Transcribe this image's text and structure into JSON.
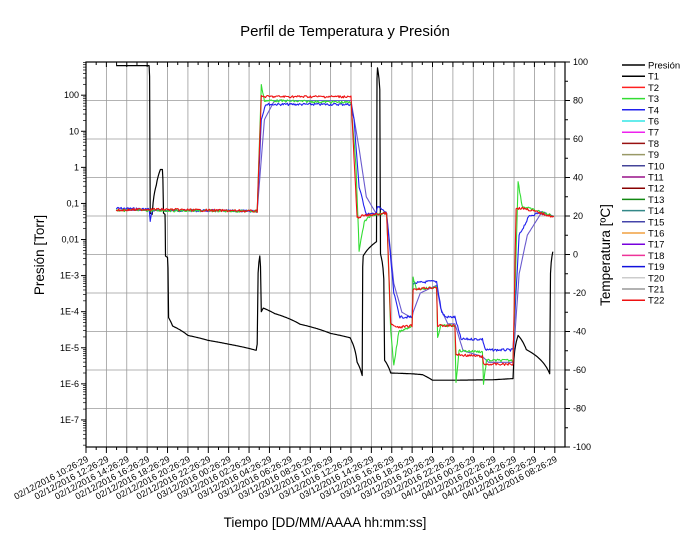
{
  "chart_data": {
    "type": "line",
    "title": "Perfil de Temperatura y Presión",
    "xlabel": "Tiempo [DD/MM/AAAA hh:mm:ss]",
    "ylabel_left": "Presión [Torr]",
    "ylabel_right": "Temperatura [ºC]",
    "x_units": "hours since 02/12/2016 10:26:29",
    "xlim": [
      0,
      47
    ],
    "x_tick_step_hours": 2,
    "x_tick_labels": [
      "02/12/2016 10:26:29",
      "02/12/2016 12:26:29",
      "02/12/2016 14:26:29",
      "02/12/2016 16:26:29",
      "02/12/2016 18:26:29",
      "02/12/2016 20:26:29",
      "02/12/2016 22:26:29",
      "03/12/2016 00:26:29",
      "03/12/2016 02:26:29",
      "03/12/2016 04:26:29",
      "03/12/2016 06:26:29",
      "03/12/2016 08:26:29",
      "03/12/2016 10:26:29",
      "03/12/2016 12:26:29",
      "03/12/2016 14:26:29",
      "03/12/2016 16:26:29",
      "03/12/2016 18:26:29",
      "03/12/2016 20:26:29",
      "03/12/2016 22:26:29",
      "04/12/2016 00:26:29",
      "04/12/2016 02:26:29",
      "04/12/2016 04:26:29",
      "04/12/2016 06:26:29",
      "04/12/2016 08:26:29"
    ],
    "y_left": {
      "scale": "log",
      "log10_range": [
        -7.75,
        2.92
      ],
      "tick_labels": [
        "100",
        "10",
        "1",
        "0,1",
        "0,01",
        "1E-3",
        "1E-4",
        "1E-5",
        "1E-6",
        "1E-7"
      ],
      "tick_values": [
        100,
        10,
        1,
        0.1,
        0.01,
        0.001,
        0.0001,
        1e-05,
        1e-06,
        1e-07
      ]
    },
    "y_right": {
      "scale": "linear",
      "ylim": [
        -100,
        100
      ],
      "tick_values": [
        100,
        80,
        60,
        40,
        20,
        0,
        -20,
        -40,
        -60,
        -80,
        -100
      ]
    },
    "grid": true,
    "legend_position": "right-outside",
    "legend": [
      {
        "name": "Presión",
        "color": "#000000"
      },
      {
        "name": "T1",
        "color": "#000000"
      },
      {
        "name": "T2",
        "color": "#ff2020"
      },
      {
        "name": "T3",
        "color": "#33dd33"
      },
      {
        "name": "T4",
        "color": "#2020ee"
      },
      {
        "name": "T6",
        "color": "#33e5e5"
      },
      {
        "name": "T7",
        "color": "#ee22ee"
      },
      {
        "name": "T8",
        "color": "#991111"
      },
      {
        "name": "T9",
        "color": "#999966"
      },
      {
        "name": "T10",
        "color": "#444499"
      },
      {
        "name": "T11",
        "color": "#991188"
      },
      {
        "name": "T12",
        "color": "#880000"
      },
      {
        "name": "T13",
        "color": "#118811"
      },
      {
        "name": "T14",
        "color": "#338888"
      },
      {
        "name": "T15",
        "color": "#4444aa"
      },
      {
        "name": "T16",
        "color": "#f0a040"
      },
      {
        "name": "T17",
        "color": "#7700dd"
      },
      {
        "name": "T18",
        "color": "#ee3399"
      },
      {
        "name": "T19",
        "color": "#1111dd"
      },
      {
        "name": "T20",
        "color": "#cccccc"
      },
      {
        "name": "T21",
        "color": "#999999"
      },
      {
        "name": "T22",
        "color": "#ee1111"
      }
    ],
    "series": [
      {
        "name": "Presión",
        "axis": "left",
        "color": "#000000",
        "points": [
          [
            2.95,
            660
          ],
          [
            6.19,
            660
          ],
          [
            6.3,
            0.054
          ],
          [
            6.5,
            0.05
          ],
          [
            6.9,
            0.32
          ],
          [
            7.3,
            0.87
          ],
          [
            7.5,
            0.87
          ],
          [
            7.6,
            0.054
          ],
          [
            7.75,
            0.05
          ],
          [
            7.8,
            0.0035
          ],
          [
            8.0,
            0.0032
          ],
          [
            8.1,
            6.8e-05
          ],
          [
            8.5,
            4e-05
          ],
          [
            10,
            2.2e-05
          ],
          [
            12,
            1.6e-05
          ],
          [
            14,
            1.26e-05
          ],
          [
            16.7,
            8.5e-06
          ],
          [
            16.8,
            1.26e-05
          ],
          [
            17.05,
            0.0035
          ],
          [
            17.2,
            0.0001
          ],
          [
            17.4,
            0.000126
          ],
          [
            18.5,
            8.9e-05
          ],
          [
            21,
            4.5e-05
          ],
          [
            24,
            2.5e-05
          ],
          [
            25.9,
            1.9e-05
          ],
          [
            26.6,
            4e-06
          ],
          [
            27.1,
            1.7e-06
          ],
          [
            27.2,
            0.0035
          ],
          [
            28.5,
            0.0087
          ],
          [
            28.6,
            575
          ],
          [
            28.9,
            0.004
          ],
          [
            29.3,
            4.5e-06
          ],
          [
            29.9,
            2e-06
          ],
          [
            32,
            1.9e-06
          ],
          [
            33,
            1.8e-06
          ],
          [
            34,
            1.26e-06
          ],
          [
            36,
            1.26e-06
          ],
          [
            40,
            1.3e-06
          ],
          [
            41.9,
            1.4e-06
          ],
          [
            42.4,
            2.2e-05
          ],
          [
            43.2,
            8.9e-06
          ],
          [
            45.5,
            1.9e-06
          ],
          [
            45.8,
            0.0046
          ]
        ]
      },
      {
        "name": "T15",
        "axis": "right",
        "color": "#6a5acd",
        "points": [
          [
            2.95,
            23
          ],
          [
            16.8,
            22.5
          ],
          [
            17.5,
            70
          ],
          [
            18.5,
            80
          ],
          [
            26,
            80
          ],
          [
            26.8,
            55
          ],
          [
            27.5,
            30
          ],
          [
            28.5,
            21
          ],
          [
            29.5,
            21.5
          ],
          [
            30.2,
            -15
          ],
          [
            31,
            -30
          ],
          [
            32,
            -33
          ],
          [
            32.1,
            -30
          ],
          [
            32.8,
            -20
          ],
          [
            34.4,
            -16
          ],
          [
            34.8,
            -28
          ],
          [
            35.5,
            -36
          ],
          [
            36.2,
            -36
          ],
          [
            37,
            -50
          ],
          [
            38.9,
            -53
          ],
          [
            39.5,
            -56
          ],
          [
            41.9,
            -56
          ],
          [
            42.5,
            -10
          ],
          [
            43.3,
            10
          ],
          [
            44.6,
            21
          ],
          [
            45.9,
            20
          ]
        ]
      },
      {
        "name": "T4",
        "axis": "right",
        "color": "#2020ee",
        "points": [
          [
            2.95,
            24
          ],
          [
            6.2,
            23.5
          ],
          [
            6.3,
            17
          ],
          [
            6.5,
            23
          ],
          [
            16.8,
            22.5
          ],
          [
            17.2,
            70
          ],
          [
            17.6,
            78
          ],
          [
            26,
            78
          ],
          [
            26.3,
            70
          ],
          [
            26.8,
            35
          ],
          [
            27.5,
            21
          ],
          [
            28.4,
            21
          ],
          [
            28.6,
            25
          ],
          [
            29.5,
            21.5
          ],
          [
            30.2,
            -20
          ],
          [
            30.8,
            -32.5
          ],
          [
            32,
            -32.5
          ],
          [
            32.1,
            -15
          ],
          [
            33.8,
            -14
          ],
          [
            34.4,
            -14
          ],
          [
            34.9,
            -30
          ],
          [
            35.3,
            -32.5
          ],
          [
            36.2,
            -32.5
          ],
          [
            36.8,
            -44
          ],
          [
            38.9,
            -44
          ],
          [
            39.2,
            -49.6
          ],
          [
            41.9,
            -49.6
          ],
          [
            42.5,
            10
          ],
          [
            43.5,
            20
          ],
          [
            44.6,
            22
          ],
          [
            45.9,
            20
          ]
        ]
      },
      {
        "name": "T3",
        "axis": "right",
        "color": "#33dd33",
        "points": [
          [
            2.95,
            23
          ],
          [
            16.8,
            22.5
          ],
          [
            17.2,
            88
          ],
          [
            17.5,
            80
          ],
          [
            26,
            79
          ],
          [
            26.5,
            45
          ],
          [
            26.8,
            2
          ],
          [
            27.3,
            17
          ],
          [
            28,
            20.5
          ],
          [
            29.5,
            21.5
          ],
          [
            29.9,
            -40
          ],
          [
            30.2,
            -58
          ],
          [
            30.7,
            -40
          ],
          [
            32,
            -37
          ],
          [
            32.1,
            -12
          ],
          [
            32.4,
            -18
          ],
          [
            34.4,
            -17
          ],
          [
            34.5,
            -43
          ],
          [
            34.8,
            -37
          ],
          [
            36.2,
            -37
          ],
          [
            36.3,
            -67
          ],
          [
            36.6,
            -50
          ],
          [
            38.9,
            -50.5
          ],
          [
            39.0,
            -67
          ],
          [
            39.3,
            -55
          ],
          [
            41.9,
            -55
          ],
          [
            42.4,
            38
          ],
          [
            42.8,
            25
          ],
          [
            45.9,
            20
          ]
        ]
      },
      {
        "name": "T22",
        "axis": "right",
        "color": "#ee1111",
        "points": [
          [
            2.95,
            23
          ],
          [
            6.2,
            23.5
          ],
          [
            16.8,
            22.5
          ],
          [
            17.2,
            82
          ],
          [
            26,
            82
          ],
          [
            26.3,
            50
          ],
          [
            26.6,
            19
          ],
          [
            27,
            20
          ],
          [
            29.5,
            21.5
          ],
          [
            29.9,
            -36
          ],
          [
            30.5,
            -38
          ],
          [
            32,
            -37
          ],
          [
            32.1,
            -18
          ],
          [
            34.4,
            -17
          ],
          [
            34.5,
            -37
          ],
          [
            36.2,
            -37
          ],
          [
            36.3,
            -52
          ],
          [
            38.9,
            -53
          ],
          [
            39.0,
            -57
          ],
          [
            41.9,
            -57
          ],
          [
            42.2,
            24
          ],
          [
            43,
            24
          ],
          [
            45.9,
            19.5
          ]
        ]
      }
    ]
  }
}
